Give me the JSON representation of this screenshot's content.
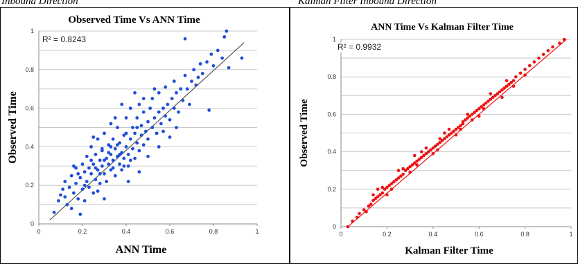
{
  "captions": {
    "left": "Inbound Direction",
    "right": "Kalman Filter Inbound Direction"
  },
  "chart_data": [
    {
      "type": "scatter",
      "title": "Observed Time Vs ANN Time",
      "xlabel": "ANN Time",
      "ylabel": "Observed Time",
      "xlim": [
        0,
        1
      ],
      "ylim": [
        0,
        1
      ],
      "xticks": [
        "0",
        "0.2",
        "0.4",
        "0.6",
        "0.8",
        "1"
      ],
      "yticks": [
        "0",
        "0.2",
        "0.4",
        "0.6",
        "0.8",
        "1"
      ],
      "grid": "horizontal",
      "annotation": "R² = 0.8243",
      "marker_color": "#1f4fd8",
      "trendline": {
        "x": [
          0.05,
          0.94
        ],
        "y": [
          0.02,
          0.94
        ],
        "color": "#555555"
      },
      "points": [
        [
          0.07,
          0.06
        ],
        [
          0.09,
          0.12
        ],
        [
          0.1,
          0.15
        ],
        [
          0.11,
          0.18
        ],
        [
          0.12,
          0.14
        ],
        [
          0.12,
          0.22
        ],
        [
          0.13,
          0.1
        ],
        [
          0.14,
          0.19
        ],
        [
          0.15,
          0.25
        ],
        [
          0.15,
          0.08
        ],
        [
          0.16,
          0.16
        ],
        [
          0.17,
          0.21
        ],
        [
          0.17,
          0.29
        ],
        [
          0.18,
          0.13
        ],
        [
          0.19,
          0.24
        ],
        [
          0.2,
          0.18
        ],
        [
          0.2,
          0.31
        ],
        [
          0.21,
          0.27
        ],
        [
          0.21,
          0.12
        ],
        [
          0.22,
          0.22
        ],
        [
          0.22,
          0.35
        ],
        [
          0.23,
          0.29
        ],
        [
          0.23,
          0.19
        ],
        [
          0.24,
          0.26
        ],
        [
          0.24,
          0.4
        ],
        [
          0.25,
          0.31
        ],
        [
          0.25,
          0.16
        ],
        [
          0.26,
          0.23
        ],
        [
          0.26,
          0.36
        ],
        [
          0.27,
          0.28
        ],
        [
          0.27,
          0.44
        ],
        [
          0.28,
          0.33
        ],
        [
          0.28,
          0.21
        ],
        [
          0.29,
          0.3
        ],
        [
          0.29,
          0.38
        ],
        [
          0.3,
          0.26
        ],
        [
          0.3,
          0.47
        ],
        [
          0.31,
          0.34
        ],
        [
          0.31,
          0.22
        ],
        [
          0.32,
          0.31
        ],
        [
          0.32,
          0.41
        ],
        [
          0.33,
          0.36
        ],
        [
          0.33,
          0.28
        ],
        [
          0.34,
          0.44
        ],
        [
          0.34,
          0.33
        ],
        [
          0.35,
          0.39
        ],
        [
          0.35,
          0.25
        ],
        [
          0.36,
          0.35
        ],
        [
          0.36,
          0.5
        ],
        [
          0.37,
          0.31
        ],
        [
          0.37,
          0.42
        ],
        [
          0.38,
          0.37
        ],
        [
          0.38,
          0.28
        ],
        [
          0.39,
          0.46
        ],
        [
          0.39,
          0.34
        ],
        [
          0.4,
          0.4
        ],
        [
          0.4,
          0.55
        ],
        [
          0.41,
          0.36
        ],
        [
          0.41,
          0.3
        ],
        [
          0.42,
          0.44
        ],
        [
          0.42,
          0.6
        ],
        [
          0.43,
          0.39
        ],
        [
          0.43,
          0.5
        ],
        [
          0.44,
          0.34
        ],
        [
          0.44,
          0.47
        ],
        [
          0.45,
          0.42
        ],
        [
          0.45,
          0.55
        ],
        [
          0.46,
          0.38
        ],
        [
          0.46,
          0.62
        ],
        [
          0.47,
          0.46
        ],
        [
          0.47,
          0.51
        ],
        [
          0.48,
          0.41
        ],
        [
          0.48,
          0.58
        ],
        [
          0.49,
          0.48
        ],
        [
          0.5,
          0.53
        ],
        [
          0.5,
          0.44
        ],
        [
          0.51,
          0.6
        ],
        [
          0.52,
          0.5
        ],
        [
          0.52,
          0.65
        ],
        [
          0.53,
          0.55
        ],
        [
          0.54,
          0.47
        ],
        [
          0.55,
          0.58
        ],
        [
          0.55,
          0.68
        ],
        [
          0.56,
          0.52
        ],
        [
          0.57,
          0.6
        ],
        [
          0.58,
          0.56
        ],
        [
          0.58,
          0.71
        ],
        [
          0.59,
          0.62
        ],
        [
          0.6,
          0.54
        ],
        [
          0.61,
          0.65
        ],
        [
          0.62,
          0.6
        ],
        [
          0.62,
          0.74
        ],
        [
          0.63,
          0.68
        ],
        [
          0.64,
          0.58
        ],
        [
          0.65,
          0.7
        ],
        [
          0.66,
          0.64
        ],
        [
          0.67,
          0.77
        ],
        [
          0.68,
          0.7
        ],
        [
          0.69,
          0.62
        ],
        [
          0.7,
          0.74
        ],
        [
          0.71,
          0.8
        ],
        [
          0.72,
          0.72
        ],
        [
          0.73,
          0.76
        ],
        [
          0.74,
          0.83
        ],
        [
          0.75,
          0.78
        ],
        [
          0.77,
          0.84
        ],
        [
          0.78,
          0.59
        ],
        [
          0.79,
          0.88
        ],
        [
          0.8,
          0.82
        ],
        [
          0.82,
          0.9
        ],
        [
          0.84,
          0.86
        ],
        [
          0.85,
          0.97
        ],
        [
          0.86,
          1.0
        ],
        [
          0.87,
          0.81
        ],
        [
          0.93,
          0.86
        ],
        [
          0.67,
          0.96
        ],
        [
          0.19,
          0.05
        ],
        [
          0.25,
          0.45
        ],
        [
          0.3,
          0.13
        ],
        [
          0.35,
          0.55
        ],
        [
          0.27,
          0.17
        ],
        [
          0.33,
          0.52
        ],
        [
          0.16,
          0.3
        ],
        [
          0.41,
          0.22
        ],
        [
          0.46,
          0.27
        ],
        [
          0.5,
          0.35
        ],
        [
          0.55,
          0.4
        ],
        [
          0.6,
          0.45
        ],
        [
          0.38,
          0.62
        ],
        [
          0.44,
          0.68
        ],
        [
          0.48,
          0.65
        ],
        [
          0.53,
          0.7
        ],
        [
          0.57,
          0.48
        ],
        [
          0.63,
          0.5
        ],
        [
          0.29,
          0.39
        ],
        [
          0.34,
          0.29
        ],
        [
          0.36,
          0.41
        ],
        [
          0.39,
          0.3
        ],
        [
          0.42,
          0.33
        ],
        [
          0.32,
          0.37
        ],
        [
          0.28,
          0.26
        ],
        [
          0.24,
          0.33
        ],
        [
          0.21,
          0.2
        ],
        [
          0.18,
          0.26
        ],
        [
          0.26,
          0.29
        ],
        [
          0.3,
          0.33
        ],
        [
          0.33,
          0.4
        ],
        [
          0.37,
          0.36
        ],
        [
          0.4,
          0.47
        ],
        [
          0.45,
          0.5
        ]
      ]
    },
    {
      "type": "scatter",
      "title": "ANN Time  Vs Kalman Filter Time",
      "xlabel": "Kalman Filter Time",
      "ylabel": "Observed Time",
      "xlim": [
        0,
        1
      ],
      "ylim": [
        0,
        1
      ],
      "xticks": [
        "0",
        "0.2",
        "0.4",
        "0.6",
        "0.8",
        "1"
      ],
      "yticks": [
        "0",
        "0.2",
        "0.4",
        "0.6",
        "0.8",
        "1"
      ],
      "grid": "horizontal",
      "annotation": "R² = 0.9932",
      "marker_color": "#ee1111",
      "trendline": {
        "x": [
          0.03,
          0.98
        ],
        "y": [
          0.0,
          1.0
        ],
        "color": "#ee1111"
      },
      "points": [
        [
          0.03,
          0.0
        ],
        [
          0.05,
          0.03
        ],
        [
          0.07,
          0.05
        ],
        [
          0.08,
          0.07
        ],
        [
          0.1,
          0.09
        ],
        [
          0.11,
          0.08
        ],
        [
          0.12,
          0.11
        ],
        [
          0.13,
          0.12
        ],
        [
          0.14,
          0.14
        ],
        [
          0.15,
          0.15
        ],
        [
          0.16,
          0.16
        ],
        [
          0.17,
          0.17
        ],
        [
          0.18,
          0.18
        ],
        [
          0.19,
          0.2
        ],
        [
          0.2,
          0.21
        ],
        [
          0.21,
          0.22
        ],
        [
          0.22,
          0.23
        ],
        [
          0.23,
          0.24
        ],
        [
          0.24,
          0.25
        ],
        [
          0.25,
          0.26
        ],
        [
          0.26,
          0.27
        ],
        [
          0.27,
          0.28
        ],
        [
          0.28,
          0.3
        ],
        [
          0.29,
          0.31
        ],
        [
          0.3,
          0.32
        ],
        [
          0.31,
          0.33
        ],
        [
          0.32,
          0.34
        ],
        [
          0.33,
          0.35
        ],
        [
          0.34,
          0.36
        ],
        [
          0.35,
          0.37
        ],
        [
          0.36,
          0.38
        ],
        [
          0.37,
          0.39
        ],
        [
          0.38,
          0.4
        ],
        [
          0.39,
          0.41
        ],
        [
          0.4,
          0.42
        ],
        [
          0.41,
          0.43
        ],
        [
          0.42,
          0.44
        ],
        [
          0.43,
          0.45
        ],
        [
          0.44,
          0.46
        ],
        [
          0.45,
          0.47
        ],
        [
          0.46,
          0.48
        ],
        [
          0.47,
          0.49
        ],
        [
          0.48,
          0.5
        ],
        [
          0.49,
          0.51
        ],
        [
          0.5,
          0.52
        ],
        [
          0.51,
          0.53
        ],
        [
          0.52,
          0.54
        ],
        [
          0.53,
          0.56
        ],
        [
          0.54,
          0.57
        ],
        [
          0.55,
          0.58
        ],
        [
          0.56,
          0.59
        ],
        [
          0.57,
          0.6
        ],
        [
          0.58,
          0.61
        ],
        [
          0.59,
          0.62
        ],
        [
          0.6,
          0.63
        ],
        [
          0.61,
          0.64
        ],
        [
          0.62,
          0.65
        ],
        [
          0.63,
          0.66
        ],
        [
          0.64,
          0.67
        ],
        [
          0.65,
          0.68
        ],
        [
          0.66,
          0.69
        ],
        [
          0.67,
          0.7
        ],
        [
          0.68,
          0.71
        ],
        [
          0.69,
          0.72
        ],
        [
          0.7,
          0.73
        ],
        [
          0.71,
          0.74
        ],
        [
          0.72,
          0.75
        ],
        [
          0.73,
          0.76
        ],
        [
          0.74,
          0.77
        ],
        [
          0.75,
          0.78
        ],
        [
          0.76,
          0.8
        ],
        [
          0.78,
          0.82
        ],
        [
          0.8,
          0.84
        ],
        [
          0.82,
          0.86
        ],
        [
          0.84,
          0.88
        ],
        [
          0.86,
          0.9
        ],
        [
          0.88,
          0.92
        ],
        [
          0.9,
          0.94
        ],
        [
          0.92,
          0.96
        ],
        [
          0.95,
          0.98
        ],
        [
          0.97,
          1.0
        ],
        [
          0.16,
          0.2
        ],
        [
          0.2,
          0.17
        ],
        [
          0.25,
          0.3
        ],
        [
          0.3,
          0.29
        ],
        [
          0.35,
          0.4
        ],
        [
          0.4,
          0.39
        ],
        [
          0.45,
          0.5
        ],
        [
          0.5,
          0.49
        ],
        [
          0.55,
          0.6
        ],
        [
          0.6,
          0.59
        ],
        [
          0.65,
          0.71
        ],
        [
          0.7,
          0.69
        ],
        [
          0.72,
          0.78
        ],
        [
          0.75,
          0.75
        ],
        [
          0.8,
          0.81
        ],
        [
          0.32,
          0.38
        ],
        [
          0.37,
          0.42
        ],
        [
          0.42,
          0.41
        ],
        [
          0.47,
          0.52
        ],
        [
          0.52,
          0.52
        ],
        [
          0.57,
          0.57
        ],
        [
          0.62,
          0.63
        ],
        [
          0.27,
          0.31
        ],
        [
          0.22,
          0.2
        ],
        [
          0.18,
          0.21
        ],
        [
          0.14,
          0.17
        ],
        [
          0.33,
          0.33
        ],
        [
          0.43,
          0.47
        ],
        [
          0.53,
          0.55
        ]
      ]
    }
  ]
}
